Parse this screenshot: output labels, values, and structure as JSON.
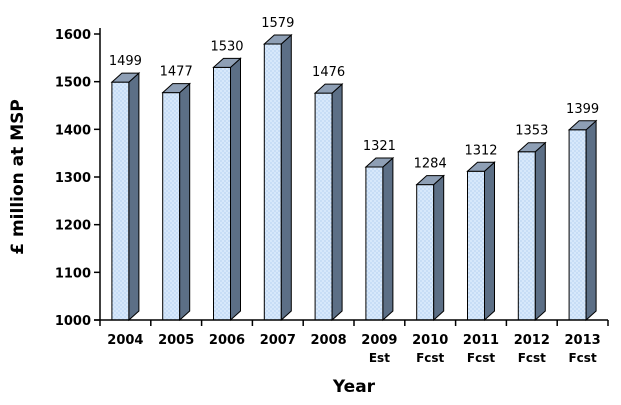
{
  "chart_data": {
    "type": "bar",
    "categories": [
      "2004",
      "2005",
      "2006",
      "2007",
      "2008",
      "2009",
      "2010",
      "2011",
      "2012",
      "2013"
    ],
    "category_sublabels": [
      "",
      "",
      "",
      "",
      "",
      "Est",
      "Fcst",
      "Fcst",
      "Fcst",
      "Fcst"
    ],
    "values": [
      1499,
      1477,
      1530,
      1579,
      1476,
      1321,
      1284,
      1312,
      1353,
      1399
    ],
    "data_labels": [
      "1499",
      "1477",
      "1530",
      "1579",
      "1476",
      "1321",
      "1284",
      "1312",
      "1353",
      "1399"
    ],
    "xlabel": "Year",
    "ylabel": "£ million at MSP",
    "ylim": [
      1000,
      1600
    ],
    "yticks": [
      "1000",
      "1100",
      "1200",
      "1300",
      "1400",
      "1500",
      "1600"
    ],
    "grid": false,
    "legend": "none",
    "colors": {
      "bar_front": "#d7e8fb",
      "bar_dots": "#9fc2ea",
      "bar_top": "#8e9fb5",
      "bar_side": "#5c6f86",
      "bar_outline": "#000000",
      "axis": "#000000",
      "text": "#000000"
    }
  }
}
